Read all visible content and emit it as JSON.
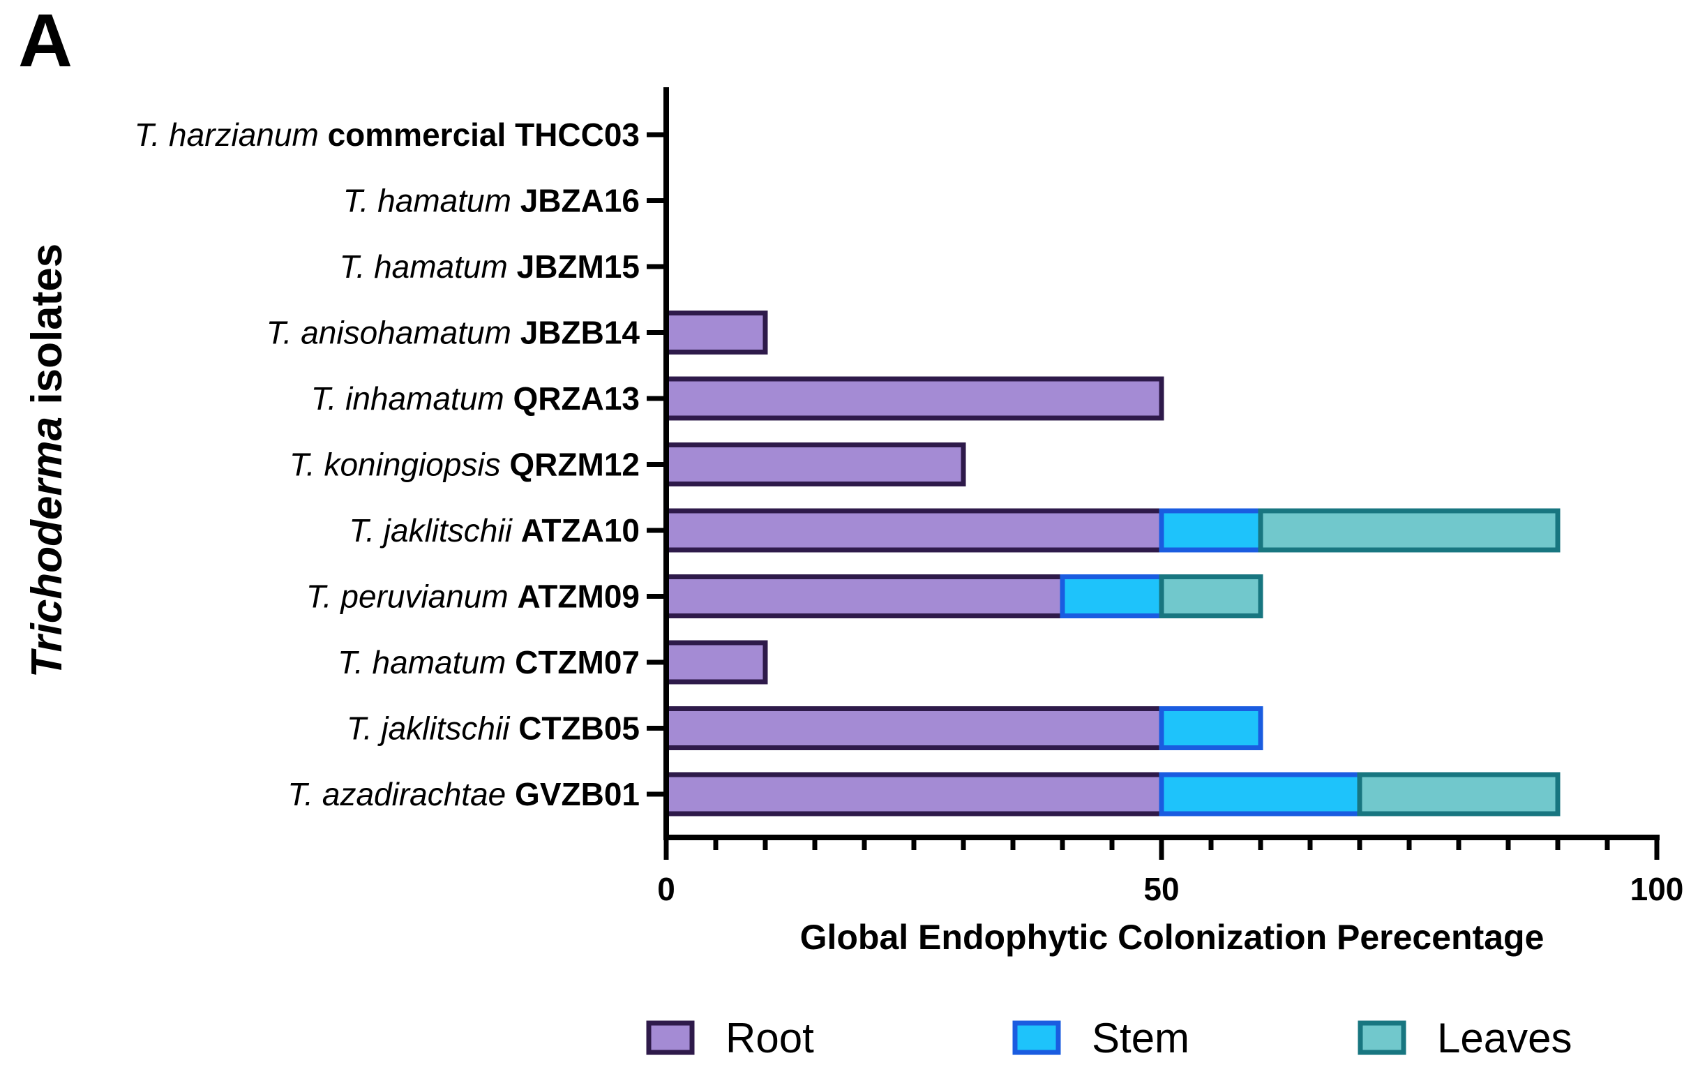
{
  "panel_label": "A",
  "chart_data": {
    "type": "bar",
    "orientation": "horizontal",
    "stacked": true,
    "title": "",
    "xlabel": "Global Endophytic Colonization Perecentage",
    "ylabel": "Trichoderma isolates",
    "ylabel_parts": [
      {
        "text": "Trichoderma",
        "italic": true
      },
      {
        "text": " isolates",
        "italic": false
      }
    ],
    "xlim": [
      0,
      100
    ],
    "xticks": [
      0,
      50,
      100
    ],
    "categories": [
      {
        "species": "T. harzianum",
        "isolate": "commercial THCC03"
      },
      {
        "species": "T. hamatum",
        "isolate": "JBZA16"
      },
      {
        "species": "T. hamatum",
        "isolate": "JBZM15"
      },
      {
        "species": "T. anisohamatum",
        "isolate": "JBZB14"
      },
      {
        "species": "T. inhamatum",
        "isolate": "QRZA13"
      },
      {
        "species": "T. koningiopsis",
        "isolate": "QRZM12"
      },
      {
        "species": "T. jaklitschii",
        "isolate": "ATZA10"
      },
      {
        "species": "T. peruvianum",
        "isolate": "ATZM09"
      },
      {
        "species": "T. hamatum",
        "isolate": "CTZM07"
      },
      {
        "species": "T. jaklitschii",
        "isolate": "CTZB05"
      },
      {
        "species": "T. azadirachtae",
        "isolate": "GVZB01"
      }
    ],
    "series": [
      {
        "name": "Root",
        "fill": "#a48bd4",
        "stroke": "#2e1a4a",
        "values": [
          0,
          0,
          0,
          10,
          50,
          30,
          50,
          40,
          10,
          50,
          50
        ]
      },
      {
        "name": "Stem",
        "fill": "#1ec3fb",
        "stroke": "#1a5ce0",
        "values": [
          0,
          0,
          0,
          0,
          0,
          0,
          10,
          10,
          0,
          10,
          20
        ]
      },
      {
        "name": "Leaves",
        "fill": "#71c8cc",
        "stroke": "#187680",
        "values": [
          0,
          0,
          0,
          0,
          0,
          0,
          30,
          10,
          0,
          0,
          20
        ]
      }
    ],
    "legend_position": "bottom",
    "grid": false
  }
}
